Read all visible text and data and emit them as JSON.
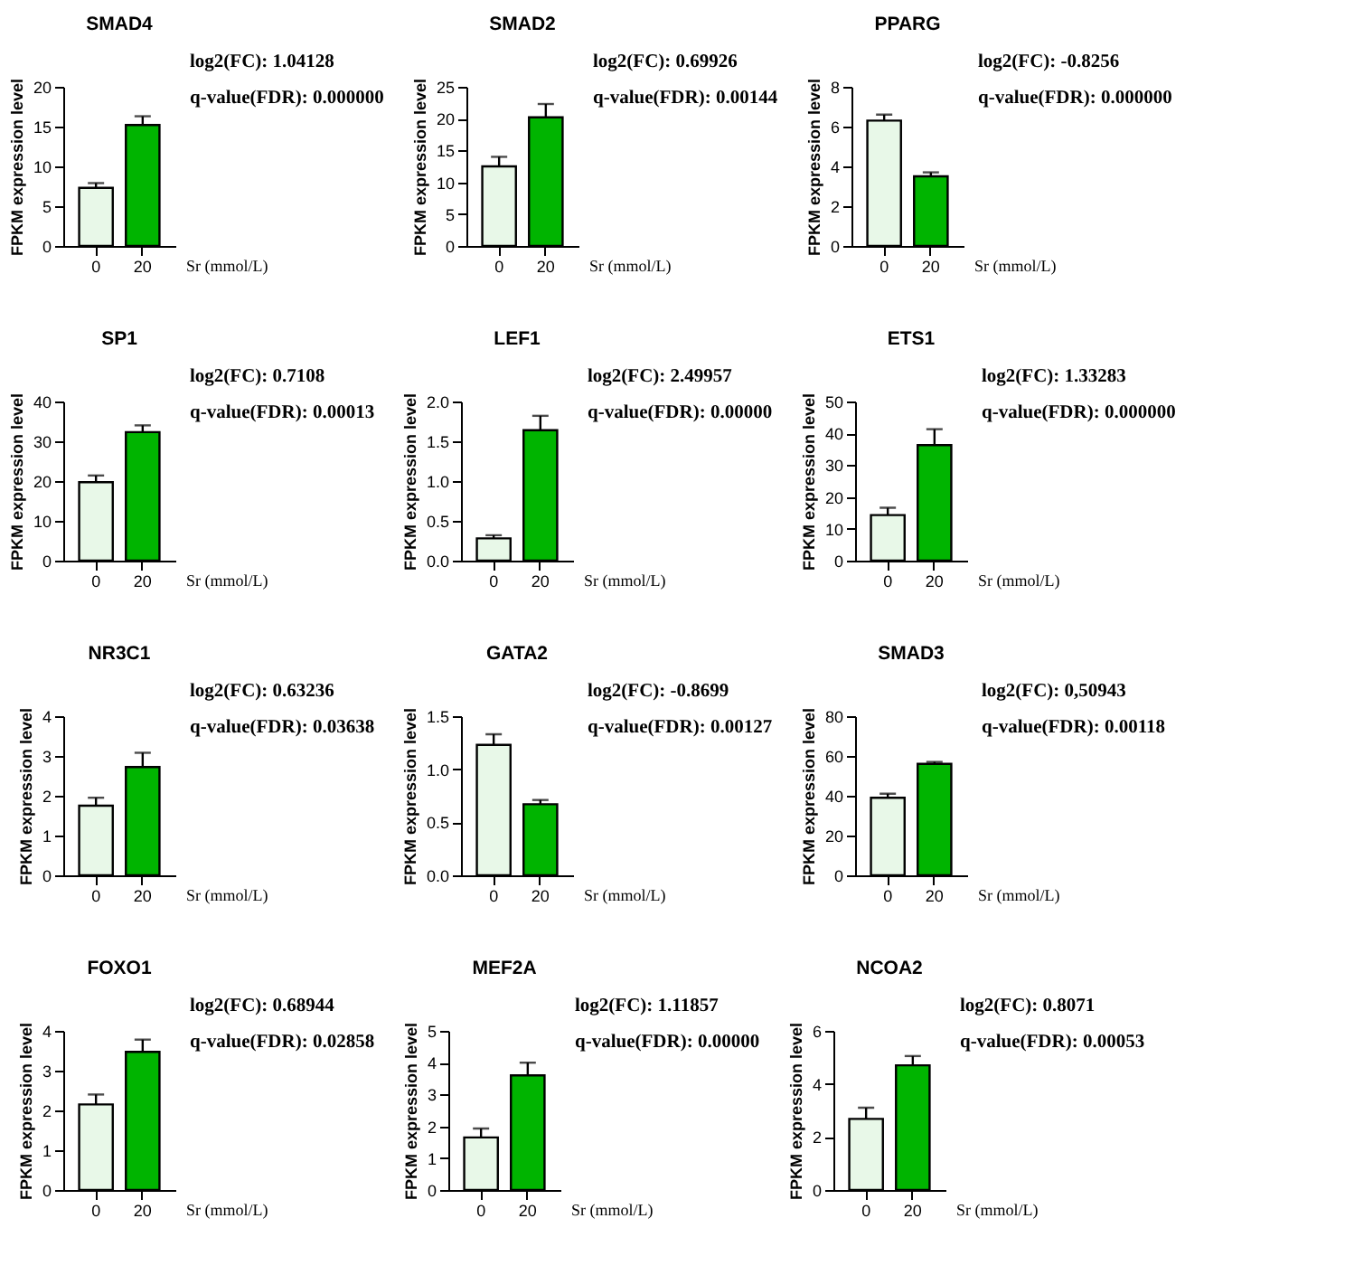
{
  "chart_data": [
    {
      "type": "bar",
      "title": "SMAD4",
      "categories": [
        "0",
        "20"
      ],
      "values": [
        7.3,
        15.2
      ],
      "colors": [
        "#e8f8e8",
        "#00b400"
      ],
      "errors": [
        [
          7.3,
          7.9
        ],
        [
          15.2,
          16.3
        ]
      ],
      "ylim": [
        0,
        20
      ],
      "yticks": [
        0,
        5,
        10,
        15,
        20
      ],
      "ylabel": "FPKM expression level",
      "xlabel": "Sr (mmol/L)",
      "annotations": [
        "log2(FC): 1.04128",
        "q-value(FDR): 0.000000"
      ]
    },
    {
      "type": "bar",
      "title": "SMAD2",
      "categories": [
        "0",
        "20"
      ],
      "values": [
        12.5,
        20.2
      ],
      "colors": [
        "#e8f8e8",
        "#00b400"
      ],
      "errors": [
        [
          12.5,
          14.0
        ],
        [
          20.2,
          22.3
        ]
      ],
      "ylim": [
        0,
        25
      ],
      "yticks": [
        0,
        5,
        10,
        15,
        20,
        25
      ],
      "ylabel": "FPKM expression level",
      "xlabel": "Sr (mmol/L)",
      "annotations": [
        "log2(FC): 0.69926",
        "q-value(FDR): 0.00144"
      ]
    },
    {
      "type": "bar",
      "title": "PPARG",
      "categories": [
        "0",
        "20"
      ],
      "values": [
        6.3,
        3.5
      ],
      "colors": [
        "#e8f8e8",
        "#00b400"
      ],
      "errors": [
        [
          6.3,
          6.6
        ],
        [
          3.5,
          3.7
        ]
      ],
      "ylim": [
        0,
        8
      ],
      "yticks": [
        0,
        2,
        4,
        6,
        8
      ],
      "ylabel": "FPKM expression level",
      "xlabel": "Sr (mmol/L)",
      "annotations": [
        "log2(FC): -0.8256",
        "q-value(FDR): 0.000000"
      ]
    },
    {
      "type": "bar",
      "title": "SP1",
      "categories": [
        "0",
        "20"
      ],
      "values": [
        19.7,
        32.3
      ],
      "colors": [
        "#e8f8e8",
        "#00b400"
      ],
      "errors": [
        [
          19.7,
          21.4
        ],
        [
          32.3,
          34.0
        ]
      ],
      "ylim": [
        0,
        40
      ],
      "yticks": [
        0,
        10,
        20,
        30,
        40
      ],
      "ylabel": "FPKM expression level",
      "xlabel": "Sr (mmol/L)",
      "annotations": [
        "log2(FC): 0.7108",
        "q-value(FDR): 0.00013"
      ]
    },
    {
      "type": "bar",
      "title": "LEF1",
      "categories": [
        "0",
        "20"
      ],
      "values": [
        0.28,
        1.64
      ],
      "colors": [
        "#e8f8e8",
        "#00b400"
      ],
      "errors": [
        [
          0.28,
          0.32
        ],
        [
          1.64,
          1.82
        ]
      ],
      "ylim": [
        0,
        2
      ],
      "yticks": [
        {
          "value": 0,
          "label": "0.0"
        },
        0.5,
        {
          "value": 1,
          "label": "1.0"
        },
        1.5,
        {
          "value": 2,
          "label": "2.0"
        }
      ],
      "ylabel": "FPKM expression level",
      "xlabel": "Sr (mmol/L)",
      "annotations": [
        "log2(FC): 2.49957",
        "q-value(FDR): 0.00000"
      ]
    },
    {
      "type": "bar",
      "title": "ETS1",
      "categories": [
        "0",
        "20"
      ],
      "values": [
        14.3,
        36.3
      ],
      "colors": [
        "#e8f8e8",
        "#00b400"
      ],
      "errors": [
        [
          14.3,
          16.6
        ],
        [
          36.3,
          41.3
        ]
      ],
      "ylim": [
        0,
        50
      ],
      "yticks": [
        0,
        10,
        20,
        30,
        40,
        50
      ],
      "ylabel": "FPKM expression level",
      "xlabel": "Sr (mmol/L)",
      "annotations": [
        "log2(FC): 1.33283",
        "q-value(FDR): 0.000000"
      ]
    },
    {
      "type": "bar",
      "title": "NR3C1",
      "categories": [
        "0",
        "20"
      ],
      "values": [
        1.75,
        2.72
      ],
      "colors": [
        "#e8f8e8",
        "#00b400"
      ],
      "errors": [
        [
          1.75,
          1.95
        ],
        [
          2.72,
          3.08
        ]
      ],
      "ylim": [
        0,
        4
      ],
      "yticks": [
        0,
        1,
        2,
        3,
        4
      ],
      "ylabel": "FPKM expression level",
      "xlabel": "Sr (mmol/L)",
      "annotations": [
        "log2(FC): 0.63236",
        "q-value(FDR): 0.03638"
      ]
    },
    {
      "type": "bar",
      "title": "GATA2",
      "categories": [
        "0",
        "20"
      ],
      "values": [
        1.23,
        0.67
      ],
      "colors": [
        "#e8f8e8",
        "#00b400"
      ],
      "errors": [
        [
          1.23,
          1.33
        ],
        [
          0.67,
          0.71
        ]
      ],
      "ylim": [
        0,
        1.5
      ],
      "yticks": [
        {
          "value": 0,
          "label": "0.0"
        },
        0.5,
        {
          "value": 1,
          "label": "1.0"
        },
        1.5
      ],
      "ylabel": "FPKM expression level",
      "xlabel": "Sr (mmol/L)",
      "annotations": [
        "log2(FC): -0.8699",
        "q-value(FDR): 0.00127"
      ]
    },
    {
      "type": "bar",
      "title": "SMAD3",
      "categories": [
        "0",
        "20"
      ],
      "values": [
        39,
        56
      ],
      "colors": [
        "#e8f8e8",
        "#00b400"
      ],
      "errors": [
        [
          39,
          41
        ],
        [
          56,
          57
        ]
      ],
      "ylim": [
        0,
        80
      ],
      "yticks": [
        0,
        20,
        40,
        60,
        80
      ],
      "ylabel": "FPKM expression level",
      "xlabel": "Sr (mmol/L)",
      "annotations": [
        "log2(FC): 0,50943",
        "q-value(FDR): 0.00118"
      ]
    },
    {
      "type": "bar",
      "title": "FOXO1",
      "categories": [
        "0",
        "20"
      ],
      "values": [
        2.15,
        3.47
      ],
      "colors": [
        "#e8f8e8",
        "#00b400"
      ],
      "errors": [
        [
          2.15,
          2.4
        ],
        [
          3.47,
          3.78
        ]
      ],
      "ylim": [
        0,
        4
      ],
      "yticks": [
        0,
        1,
        2,
        3,
        4
      ],
      "ylabel": "FPKM expression level",
      "xlabel": "Sr (mmol/L)",
      "annotations": [
        "log2(FC): 0.68944",
        "q-value(FDR): 0.02858"
      ]
    },
    {
      "type": "bar",
      "title": "MEF2A",
      "categories": [
        "0",
        "20"
      ],
      "values": [
        1.65,
        3.6
      ],
      "colors": [
        "#e8f8e8",
        "#00b400"
      ],
      "errors": [
        [
          1.65,
          1.93
        ],
        [
          3.6,
          4.0
        ]
      ],
      "ylim": [
        0,
        5
      ],
      "yticks": [
        0,
        1,
        2,
        3,
        4,
        5
      ],
      "ylabel": "FPKM expression level",
      "xlabel": "Sr (mmol/L)",
      "annotations": [
        "log2(FC): 1.11857",
        "q-value(FDR): 0.00000"
      ]
    },
    {
      "type": "bar",
      "title": "NCOA2",
      "categories": [
        "0",
        "20"
      ],
      "values": [
        2.68,
        4.7
      ],
      "colors": [
        "#e8f8e8",
        "#00b400"
      ],
      "errors": [
        [
          2.68,
          3.1
        ],
        [
          4.7,
          5.05
        ]
      ],
      "ylim": [
        0,
        6
      ],
      "yticks": [
        0,
        2,
        4,
        6
      ],
      "ylabel": "FPKM expression level",
      "xlabel": "Sr (mmol/L)",
      "annotations": [
        "log2(FC): 0.8071",
        "q-value(FDR): 0.00053"
      ]
    }
  ]
}
